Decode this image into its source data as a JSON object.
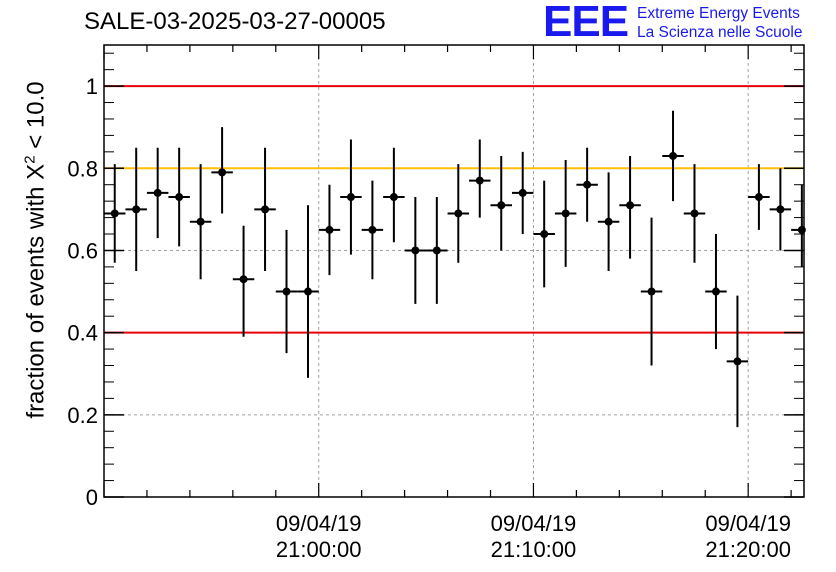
{
  "header": {
    "run_title": "SALE-03-2025-03-27-00005",
    "logo_mark": "EEE",
    "logo_line1": "Extreme Energy Events",
    "logo_line2": "La Scienza nelle Scuole"
  },
  "colors": {
    "brand_blue": "#1a1aee",
    "limit_red": "#e8000b",
    "limit_orange": "#ffbf00",
    "points": "#000000",
    "grid": "#a0a0a0"
  },
  "chart_data": {
    "type": "scatter",
    "title": "SALE-03-2025-03-27-00005",
    "ylabel_prefix": "fraction of events with X",
    "ylabel_sup": "2",
    "ylabel_suffix": " < 10.0",
    "ylim": [
      0,
      1.1
    ],
    "yticks": [
      0,
      0.2,
      0.4,
      0.6,
      0.8,
      1
    ],
    "ytick_labels": [
      "0",
      "0.2",
      "0.4",
      "0.6",
      "0.8",
      "1"
    ],
    "x_unit": "minutes after 09/04/19 20:50:00",
    "xlim": [
      0,
      32.6
    ],
    "xticks": [
      {
        "x": 10,
        "date": "09/04/19",
        "time": "21:00:00"
      },
      {
        "x": 20,
        "date": "09/04/19",
        "time": "21:10:00"
      },
      {
        "x": 30,
        "date": "09/04/19",
        "time": "21:20:00"
      }
    ],
    "grid": true,
    "reference_lines": [
      {
        "y": 1.0,
        "color": "#e8000b"
      },
      {
        "y": 0.8,
        "color": "#ffbf00"
      },
      {
        "y": 0.4,
        "color": "#e8000b"
      }
    ],
    "bin_width": 1,
    "series": [
      {
        "x": [
          0.5,
          1.5,
          2.5,
          3.5,
          4.5,
          5.5,
          6.5,
          7.5,
          8.5,
          9.5,
          10.5,
          11.5,
          12.5,
          13.5,
          14.5,
          15.5,
          16.5,
          17.5,
          18.5,
          19.5,
          20.5,
          21.5,
          22.5,
          23.5,
          24.5,
          25.5,
          26.5,
          27.5,
          28.5,
          29.5,
          30.5,
          31.5,
          32.5
        ],
        "y": [
          0.69,
          0.7,
          0.74,
          0.73,
          0.67,
          0.79,
          0.53,
          0.7,
          0.5,
          0.5,
          0.65,
          0.73,
          0.65,
          0.73,
          0.6,
          0.6,
          0.69,
          0.77,
          0.71,
          0.74,
          0.64,
          0.69,
          0.76,
          0.67,
          0.71,
          0.5,
          0.83,
          0.69,
          0.5,
          0.33,
          0.73,
          0.7,
          0.65
        ],
        "yerr_low": [
          0.12,
          0.15,
          0.11,
          0.12,
          0.14,
          0.1,
          0.14,
          0.15,
          0.15,
          0.21,
          0.11,
          0.14,
          0.12,
          0.11,
          0.13,
          0.13,
          0.12,
          0.09,
          0.11,
          0.1,
          0.13,
          0.13,
          0.09,
          0.12,
          0.13,
          0.18,
          0.11,
          0.12,
          0.14,
          0.16,
          0.08,
          0.1,
          0.09
        ],
        "yerr_high": [
          0.12,
          0.15,
          0.11,
          0.12,
          0.14,
          0.11,
          0.13,
          0.15,
          0.15,
          0.21,
          0.11,
          0.14,
          0.12,
          0.12,
          0.13,
          0.13,
          0.12,
          0.1,
          0.12,
          0.1,
          0.13,
          0.13,
          0.09,
          0.12,
          0.12,
          0.18,
          0.11,
          0.12,
          0.14,
          0.16,
          0.08,
          0.1,
          0.11
        ]
      }
    ]
  }
}
